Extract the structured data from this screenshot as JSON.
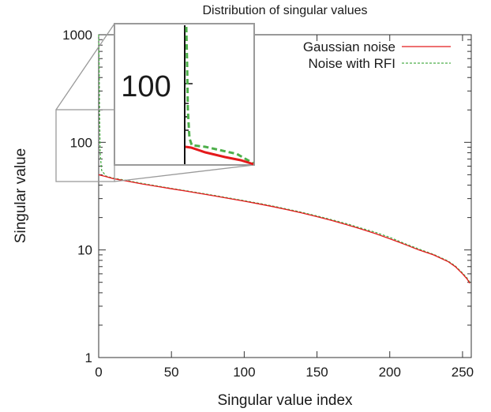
{
  "chart_data": {
    "type": "line",
    "title": "Distribution of singular values",
    "xlabel": "Singular value index",
    "ylabel": "Singular value",
    "xlim": [
      0,
      256
    ],
    "ylim": [
      1,
      1000
    ],
    "yscale": "log",
    "grid": false,
    "legend_position": "top-right",
    "x_ticks": [
      "0",
      "50",
      "100",
      "150",
      "200",
      "250"
    ],
    "y_ticks": [
      "1",
      "10",
      "100",
      "1000"
    ],
    "series": [
      {
        "name": "Gaussian noise",
        "color": "#e41a1c",
        "dash": "solid",
        "x": [
          0,
          5,
          10,
          20,
          30,
          40,
          50,
          60,
          70,
          80,
          90,
          100,
          110,
          120,
          130,
          140,
          150,
          160,
          170,
          180,
          190,
          200,
          210,
          220,
          230,
          240,
          245,
          250,
          253,
          255
        ],
        "y": [
          50,
          48,
          46,
          43.5,
          41,
          39,
          37,
          35.2,
          33.4,
          31.7,
          30.0,
          28.4,
          26.8,
          25.2,
          23.6,
          22.0,
          20.4,
          18.8,
          17.2,
          15.7,
          14.2,
          12.7,
          11.3,
          10.0,
          9.0,
          7.8,
          7.0,
          6.0,
          5.4,
          4.9
        ]
      },
      {
        "name": "Noise with RFI",
        "color": "#4daf4a",
        "dash": "dashed",
        "x": [
          0,
          0.3,
          0.6,
          1,
          2,
          5,
          10,
          20,
          30,
          40,
          50,
          60,
          70,
          80,
          90,
          100,
          110,
          120,
          130,
          140,
          150,
          160,
          170,
          180,
          190,
          200,
          210,
          220,
          230,
          240,
          245,
          250,
          253,
          255
        ],
        "y": [
          1000,
          600,
          200,
          80,
          55,
          48.5,
          46.5,
          44,
          41.5,
          39.3,
          37.3,
          35.5,
          33.7,
          32.0,
          30.3,
          28.7,
          27.1,
          25.5,
          23.9,
          22.3,
          20.7,
          19.1,
          17.6,
          16.0,
          14.6,
          13.1,
          11.5,
          10.2,
          9.1,
          7.9,
          7.1,
          6.1,
          5.5,
          5.0
        ]
      }
    ],
    "inset": {
      "tick_label": "100",
      "tick_value": 100
    }
  }
}
